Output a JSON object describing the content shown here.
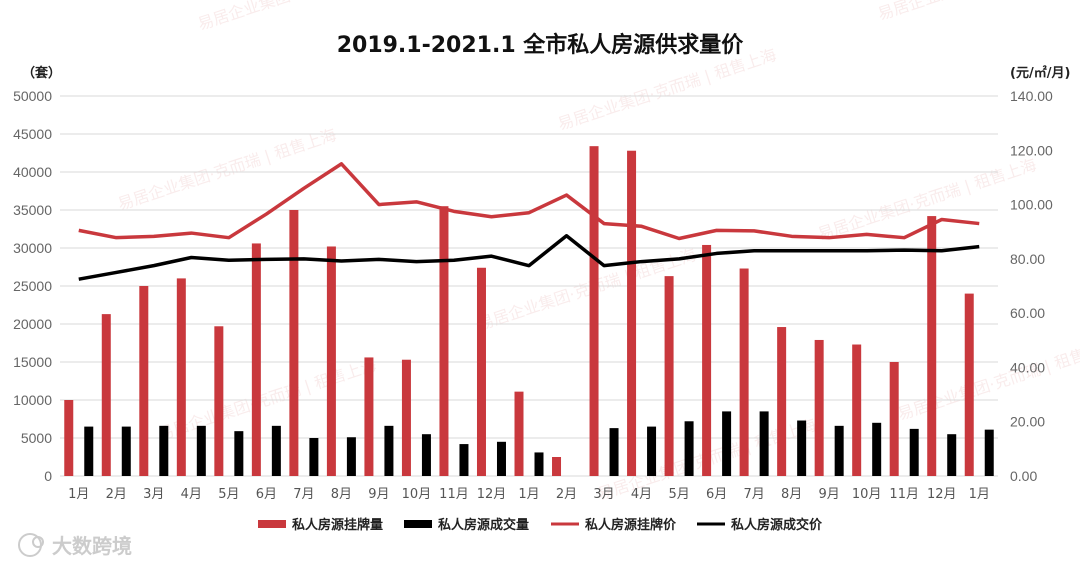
{
  "chart_data": {
    "type": "bar",
    "title": "2019.1-2021.1 全市私人房源供求量价",
    "y_left_unit": "（套）",
    "y_right_unit": "(元/㎡/月)",
    "ylim_left": [
      0,
      50000
    ],
    "ylim_right": [
      0,
      140
    ],
    "y_left_ticks": [
      "0",
      "5000",
      "10000",
      "15000",
      "20000",
      "25000",
      "30000",
      "35000",
      "40000",
      "45000",
      "50000"
    ],
    "y_right_ticks": [
      "0.00",
      "20.00",
      "40.00",
      "60.00",
      "80.00",
      "100.00",
      "120.00",
      "140.00"
    ],
    "grid": true,
    "legend_position": "bottom",
    "categories": [
      "1月",
      "2月",
      "3月",
      "4月",
      "5月",
      "6月",
      "7月",
      "8月",
      "9月",
      "10月",
      "11月",
      "12月",
      "1月",
      "2月",
      "3月",
      "4月",
      "5月",
      "6月",
      "7月",
      "8月",
      "9月",
      "10月",
      "11月",
      "12月",
      "1月"
    ],
    "series": [
      {
        "name": "私人房源挂牌量",
        "kind": "bar",
        "axis": "left",
        "color": "#c9383d",
        "values": [
          10000,
          21300,
          25000,
          26000,
          19700,
          30600,
          35000,
          30200,
          15600,
          15300,
          35500,
          27400,
          11100,
          2500,
          43400,
          42800,
          26300,
          30400,
          27300,
          19600,
          17900,
          17300,
          15000,
          34200,
          24000
        ]
      },
      {
        "name": "私人房源成交量",
        "kind": "bar",
        "axis": "left",
        "color": "#000000",
        "values": [
          6500,
          6500,
          6600,
          6600,
          5900,
          6600,
          5000,
          5100,
          6600,
          5500,
          4200,
          4500,
          3100,
          0,
          6300,
          6500,
          7200,
          8500,
          8500,
          7300,
          6600,
          7000,
          6200,
          5500,
          6100
        ]
      },
      {
        "name": "私人房源挂牌价",
        "kind": "line",
        "axis": "right",
        "color": "#c9383d",
        "values": [
          90.5,
          87.8,
          88.3,
          89.5,
          87.8,
          96.5,
          106.0,
          115.0,
          100.0,
          101.0,
          97.5,
          95.5,
          97.0,
          103.5,
          93.0,
          92.0,
          87.5,
          90.5,
          90.3,
          88.3,
          87.8,
          89.0,
          87.8,
          94.5,
          93.0
        ]
      },
      {
        "name": "私人房源成交价",
        "kind": "line",
        "axis": "right",
        "color": "#000000",
        "values": [
          72.5,
          75.0,
          77.5,
          80.5,
          79.5,
          79.8,
          80.0,
          79.2,
          79.8,
          79.0,
          79.5,
          81.0,
          77.5,
          88.5,
          77.5,
          79.0,
          80.0,
          82.0,
          83.0,
          83.0,
          83.0,
          83.0,
          83.2,
          83.0,
          84.5
        ]
      }
    ]
  },
  "watermark": {
    "brand_text": "大数跨境",
    "company_text": "易居企业集团·克而瑞 | 租售上海",
    "color": "#c94c4c"
  }
}
